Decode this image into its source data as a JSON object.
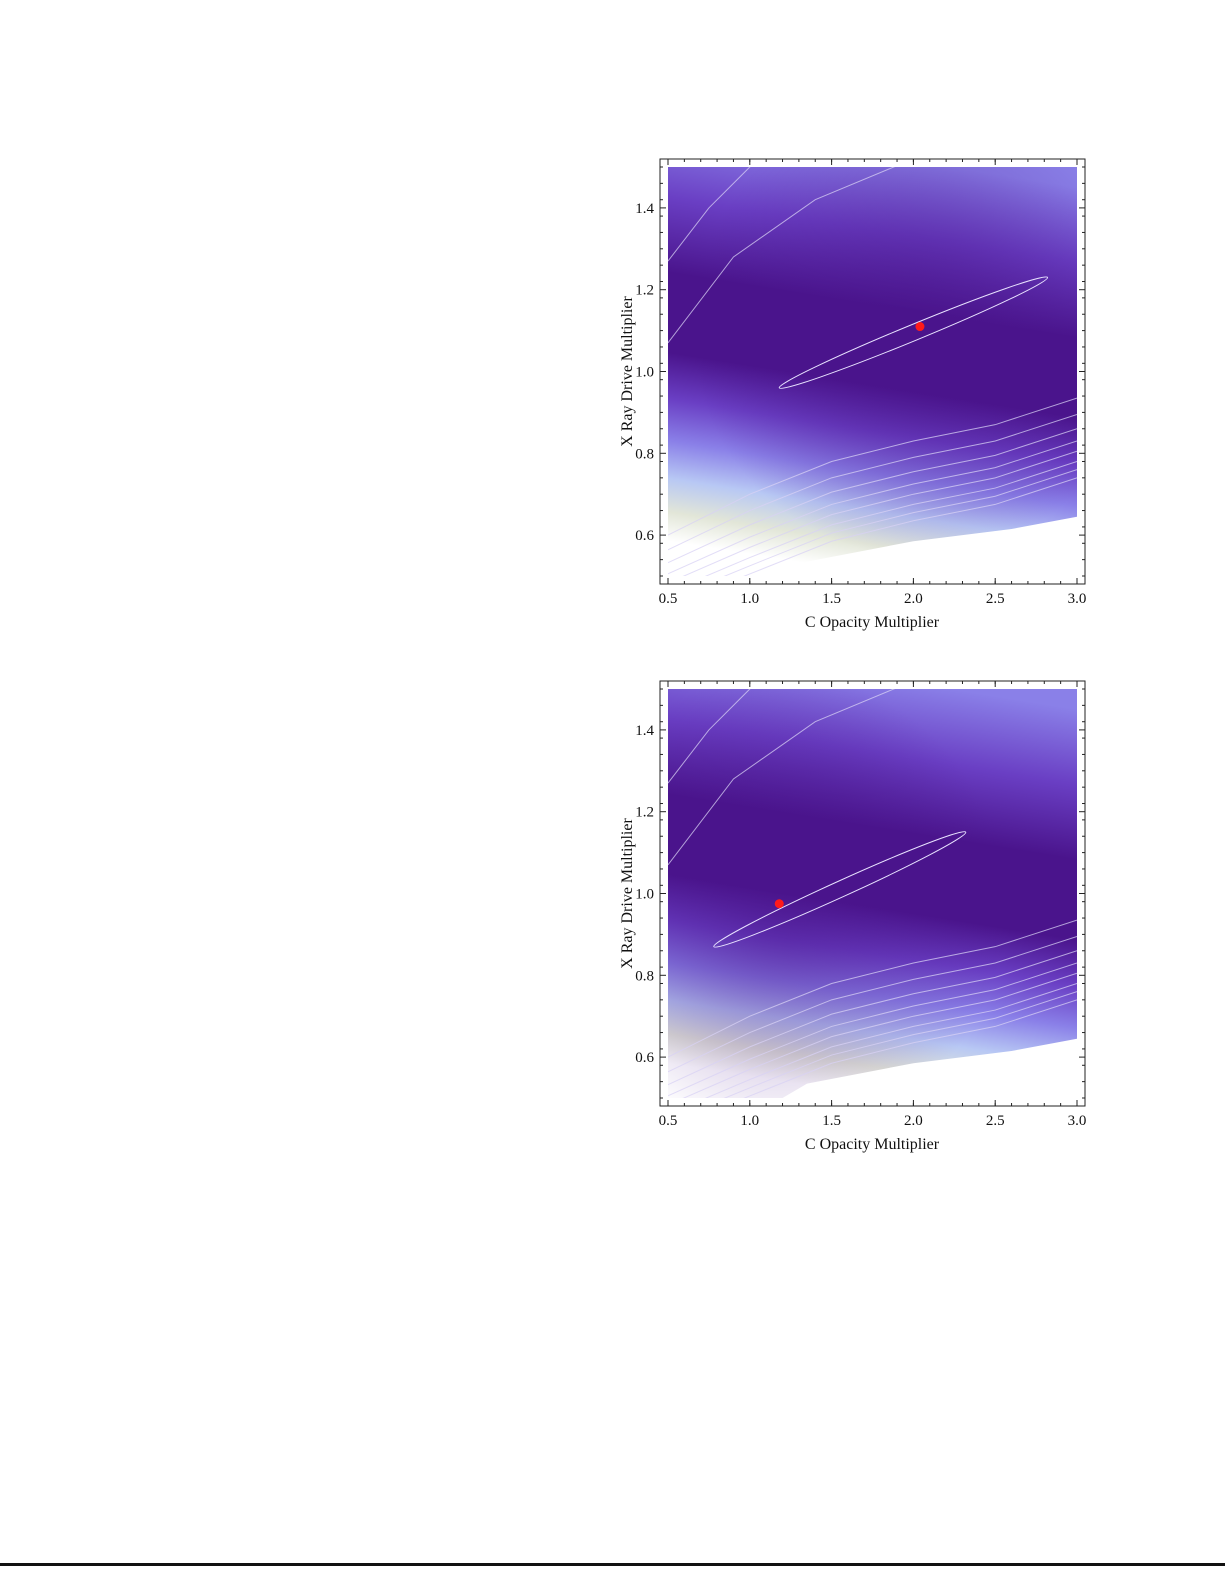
{
  "chart_data": [
    {
      "type": "heatmap",
      "xlabel": "C Opacity Multiplier",
      "ylabel": "X Ray Drive Multiplier",
      "xlim": [
        0.5,
        3.0
      ],
      "ylim": [
        0.5,
        1.5
      ],
      "xticks": [
        "0.5",
        "1.0",
        "1.5",
        "2.0",
        "2.5",
        "3.0"
      ],
      "yticks": [
        "0.6",
        "0.8",
        "1.0",
        "1.2",
        "1.4"
      ],
      "best_fit": {
        "x": 2.04,
        "y": 1.11
      },
      "ellipse": {
        "start": {
          "x": 1.18,
          "y": 0.96
        },
        "end": {
          "x": 2.82,
          "y": 1.23
        }
      },
      "point_color": "#ff1a1a",
      "colormap": [
        "#4a148c",
        "#6a3fc4",
        "#8a80e8",
        "#b8c8f4",
        "#e2e6d8",
        "#ffffff"
      ],
      "grid": false
    },
    {
      "type": "heatmap",
      "xlabel": "C Opacity Multiplier",
      "ylabel": "X Ray Drive Multiplier",
      "xlim": [
        0.5,
        3.0
      ],
      "ylim": [
        0.5,
        1.5
      ],
      "xticks": [
        "0.5",
        "1.0",
        "1.5",
        "2.0",
        "2.5",
        "3.0"
      ],
      "yticks": [
        "0.6",
        "0.8",
        "1.0",
        "1.2",
        "1.4"
      ],
      "best_fit": {
        "x": 1.18,
        "y": 0.975
      },
      "ellipse": {
        "start": {
          "x": 0.78,
          "y": 0.87
        },
        "end": {
          "x": 2.32,
          "y": 1.15
        }
      },
      "point_color": "#ff1a1a",
      "colormap": [
        "#4a148c",
        "#6a3fc4",
        "#8a80e8",
        "#b8c8f4",
        "#e2e6d8",
        "#ffffff"
      ],
      "grid": false
    }
  ]
}
